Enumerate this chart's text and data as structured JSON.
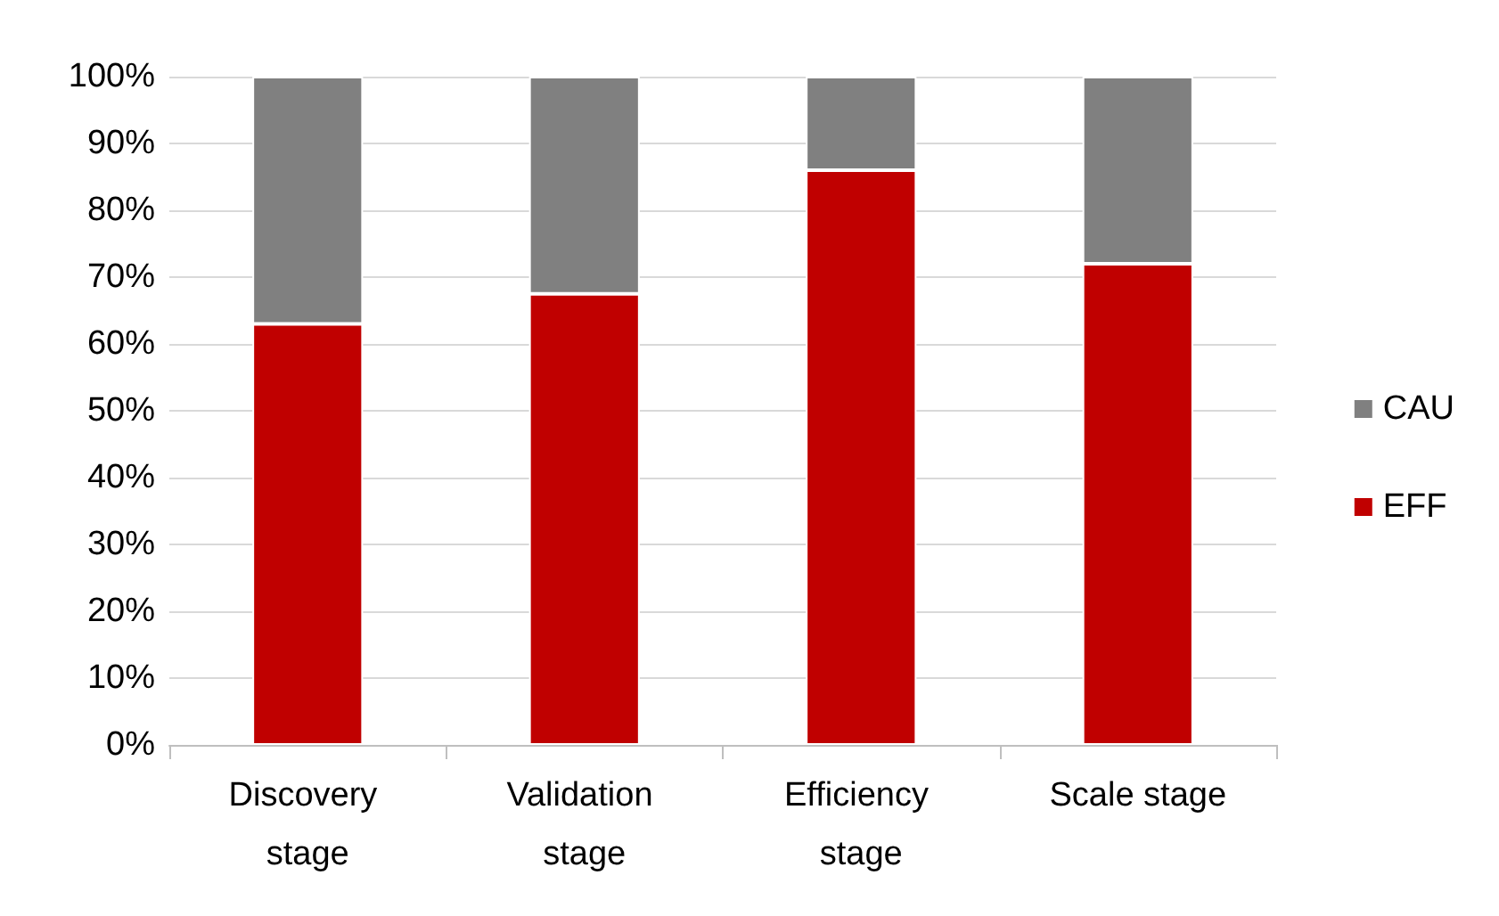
{
  "chart_data": {
    "type": "bar",
    "stacked": true,
    "categories": [
      "Discovery stage",
      "Validation stage",
      "Efficiency stage",
      "Scale stage"
    ],
    "series": [
      {
        "name": "EFF",
        "color": "#c00000",
        "values": [
          63,
          67.5,
          86,
          72
        ]
      },
      {
        "name": "CAU",
        "color": "#808080",
        "values": [
          37,
          32.5,
          14,
          28
        ]
      }
    ],
    "ylim": [
      0,
      100
    ],
    "yticks": [
      {
        "value": 0,
        "label": "0%"
      },
      {
        "value": 10,
        "label": "10%"
      },
      {
        "value": 20,
        "label": "20%"
      },
      {
        "value": 30,
        "label": "30%"
      },
      {
        "value": 40,
        "label": "40%"
      },
      {
        "value": 50,
        "label": "50%"
      },
      {
        "value": 60,
        "label": "60%"
      },
      {
        "value": 70,
        "label": "70%"
      },
      {
        "value": 80,
        "label": "80%"
      },
      {
        "value": 90,
        "label": "90%"
      },
      {
        "value": 100,
        "label": "100%"
      }
    ],
    "grid": "y",
    "legend": "right"
  }
}
